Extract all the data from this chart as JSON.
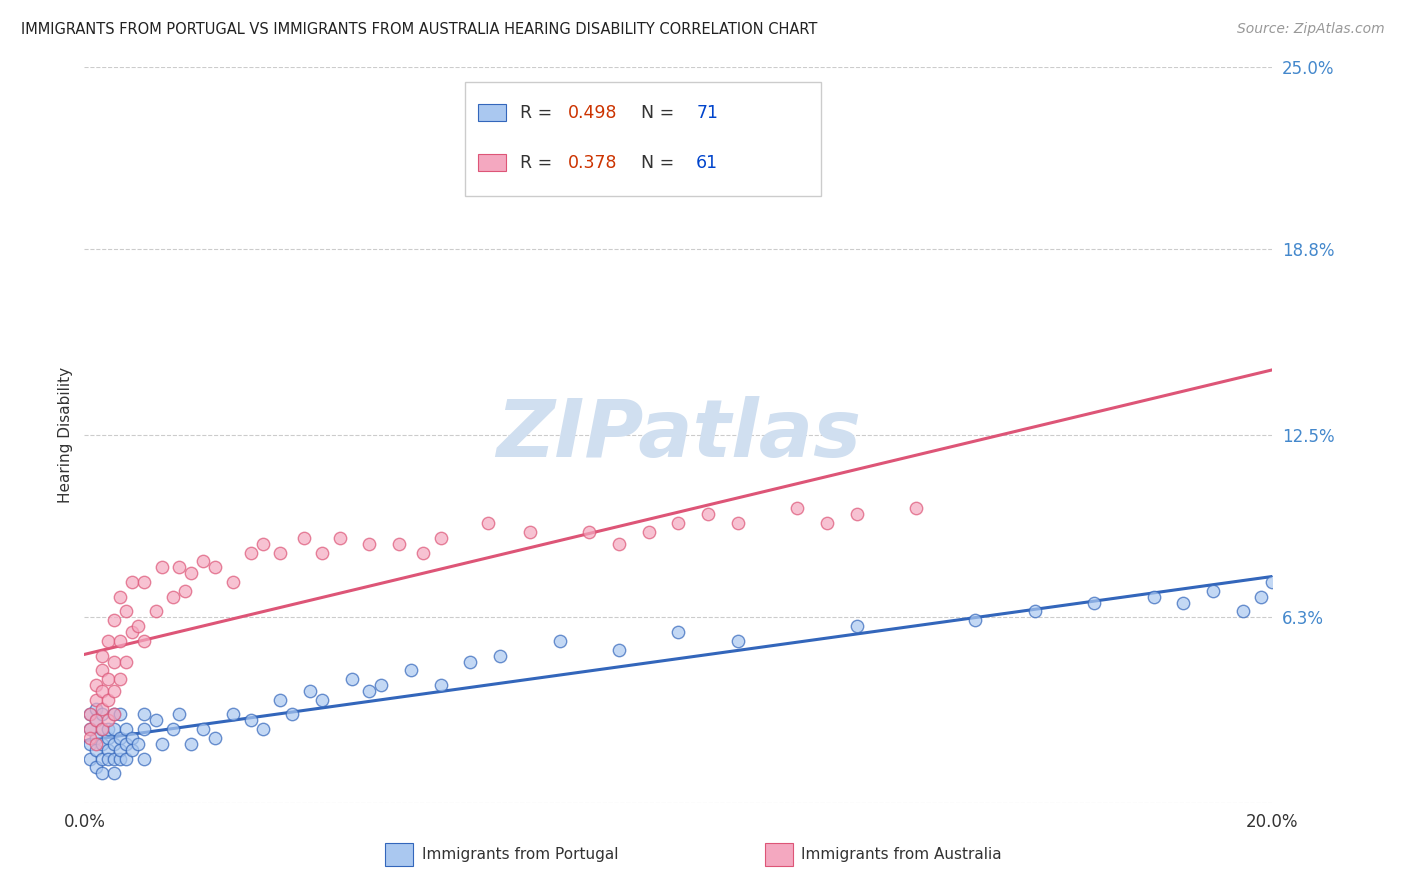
{
  "title": "IMMIGRANTS FROM PORTUGAL VS IMMIGRANTS FROM AUSTRALIA HEARING DISABILITY CORRELATION CHART",
  "source": "Source: ZipAtlas.com",
  "ylabel": "Hearing Disability",
  "xlim": [
    0.0,
    0.2
  ],
  "ylim": [
    0.0,
    0.25
  ],
  "xticks": [
    0.0,
    0.2
  ],
  "xticklabels": [
    "0.0%",
    "20.0%"
  ],
  "ytick_positions": [
    0.0,
    0.063,
    0.125,
    0.188,
    0.25
  ],
  "ytick_labels": [
    "",
    "6.3%",
    "12.5%",
    "18.8%",
    "25.0%"
  ],
  "portugal_R": 0.498,
  "portugal_N": 71,
  "australia_R": 0.378,
  "australia_N": 61,
  "portugal_color": "#aac8f0",
  "australia_color": "#f4a8c0",
  "portugal_line_color": "#3366bb",
  "australia_line_color": "#dd5577",
  "legend_R_color": "#cc3300",
  "legend_N_color": "#0044cc",
  "background_color": "#ffffff",
  "grid_color": "#cccccc",
  "watermark_color": "#d0dff0",
  "portugal_scatter_x": [
    0.001,
    0.001,
    0.001,
    0.001,
    0.002,
    0.002,
    0.002,
    0.002,
    0.002,
    0.003,
    0.003,
    0.003,
    0.003,
    0.003,
    0.004,
    0.004,
    0.004,
    0.004,
    0.005,
    0.005,
    0.005,
    0.005,
    0.005,
    0.006,
    0.006,
    0.006,
    0.006,
    0.007,
    0.007,
    0.007,
    0.008,
    0.008,
    0.009,
    0.01,
    0.01,
    0.01,
    0.012,
    0.013,
    0.015,
    0.016,
    0.018,
    0.02,
    0.022,
    0.025,
    0.028,
    0.03,
    0.033,
    0.035,
    0.038,
    0.04,
    0.045,
    0.048,
    0.05,
    0.055,
    0.06,
    0.065,
    0.07,
    0.08,
    0.09,
    0.1,
    0.11,
    0.13,
    0.15,
    0.16,
    0.17,
    0.18,
    0.185,
    0.19,
    0.195,
    0.198,
    0.2
  ],
  "portugal_scatter_y": [
    0.02,
    0.025,
    0.03,
    0.015,
    0.022,
    0.028,
    0.018,
    0.032,
    0.012,
    0.025,
    0.02,
    0.015,
    0.01,
    0.03,
    0.022,
    0.018,
    0.025,
    0.015,
    0.02,
    0.015,
    0.025,
    0.03,
    0.01,
    0.022,
    0.015,
    0.03,
    0.018,
    0.02,
    0.025,
    0.015,
    0.022,
    0.018,
    0.02,
    0.025,
    0.015,
    0.03,
    0.028,
    0.02,
    0.025,
    0.03,
    0.02,
    0.025,
    0.022,
    0.03,
    0.028,
    0.025,
    0.035,
    0.03,
    0.038,
    0.035,
    0.042,
    0.038,
    0.04,
    0.045,
    0.04,
    0.048,
    0.05,
    0.055,
    0.052,
    0.058,
    0.055,
    0.06,
    0.062,
    0.065,
    0.068,
    0.07,
    0.068,
    0.072,
    0.065,
    0.07,
    0.075
  ],
  "australia_scatter_x": [
    0.001,
    0.001,
    0.001,
    0.002,
    0.002,
    0.002,
    0.002,
    0.003,
    0.003,
    0.003,
    0.003,
    0.003,
    0.004,
    0.004,
    0.004,
    0.004,
    0.005,
    0.005,
    0.005,
    0.005,
    0.006,
    0.006,
    0.006,
    0.007,
    0.007,
    0.008,
    0.008,
    0.009,
    0.01,
    0.01,
    0.012,
    0.013,
    0.015,
    0.016,
    0.017,
    0.018,
    0.02,
    0.022,
    0.025,
    0.028,
    0.03,
    0.033,
    0.037,
    0.04,
    0.043,
    0.048,
    0.053,
    0.057,
    0.06,
    0.068,
    0.075,
    0.085,
    0.09,
    0.095,
    0.1,
    0.105,
    0.11,
    0.12,
    0.125,
    0.13,
    0.14
  ],
  "australia_scatter_y": [
    0.03,
    0.025,
    0.022,
    0.035,
    0.028,
    0.04,
    0.02,
    0.038,
    0.045,
    0.032,
    0.025,
    0.05,
    0.042,
    0.055,
    0.035,
    0.028,
    0.048,
    0.038,
    0.062,
    0.03,
    0.055,
    0.07,
    0.042,
    0.065,
    0.048,
    0.058,
    0.075,
    0.06,
    0.055,
    0.075,
    0.065,
    0.08,
    0.07,
    0.08,
    0.072,
    0.078,
    0.082,
    0.08,
    0.075,
    0.085,
    0.088,
    0.085,
    0.09,
    0.085,
    0.09,
    0.088,
    0.088,
    0.085,
    0.09,
    0.095,
    0.092,
    0.092,
    0.088,
    0.092,
    0.095,
    0.098,
    0.095,
    0.1,
    0.095,
    0.098,
    0.1
  ]
}
